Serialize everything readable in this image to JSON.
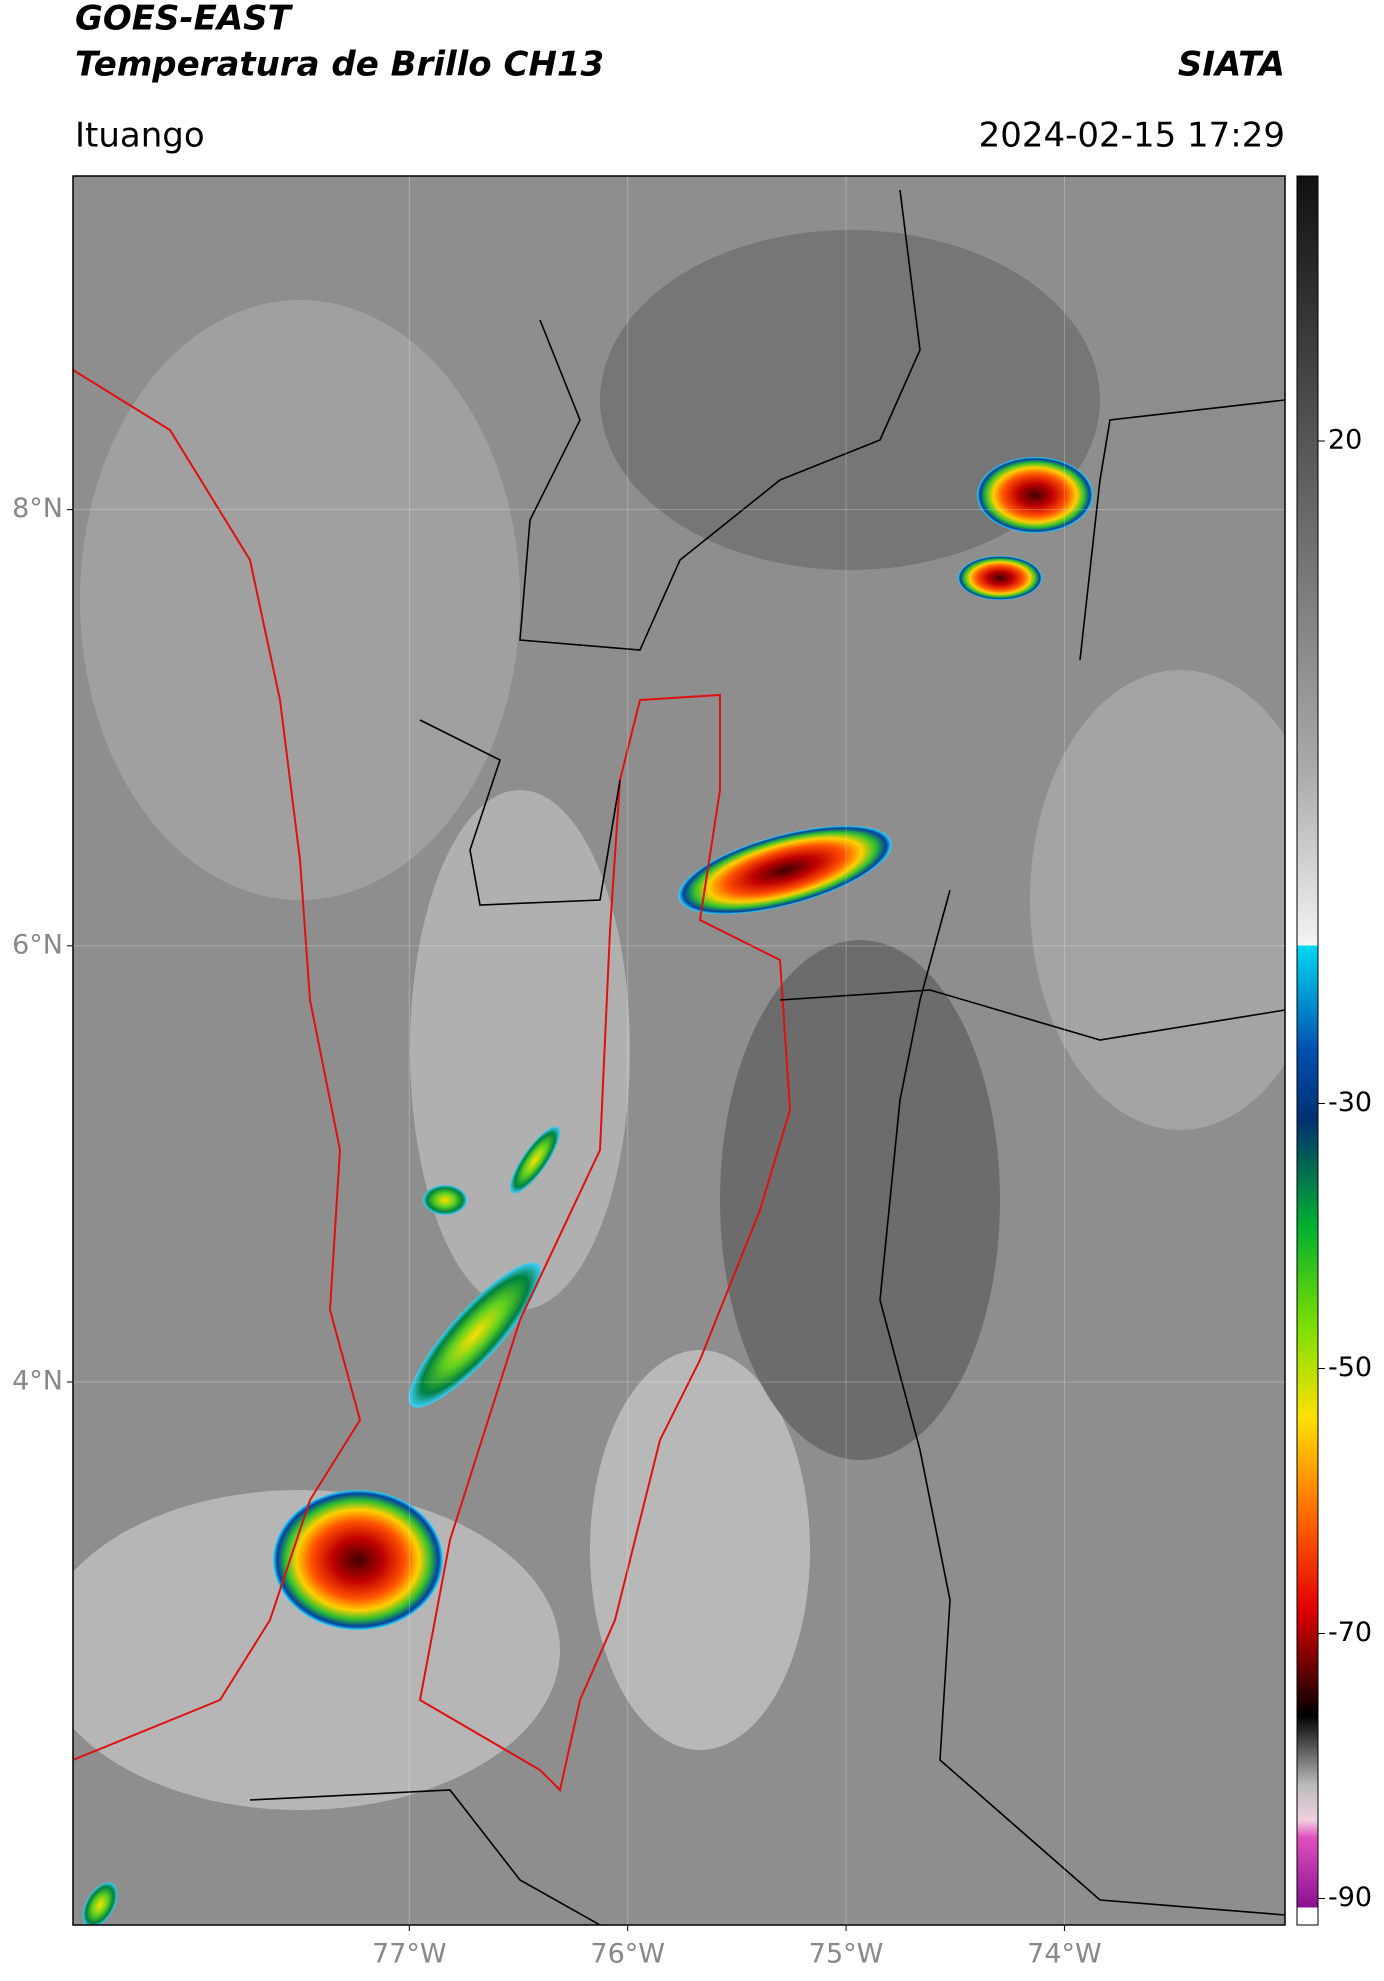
{
  "header": {
    "title_line1": "GOES-EAST",
    "title_line2": "Temperatura de Brillo CH13",
    "org": "SIATA",
    "location": "Ituango",
    "datetime": "2024-02-15 17:29"
  },
  "chart_data": {
    "type": "map",
    "xlim": [
      -78.54,
      -72.99
    ],
    "ylim": [
      1.51,
      9.53
    ],
    "xticks": [
      {
        "value": -77,
        "label": "77°W"
      },
      {
        "value": -76,
        "label": "76°W"
      },
      {
        "value": -75,
        "label": "75°W"
      },
      {
        "value": -74,
        "label": "74°W"
      }
    ],
    "yticks": [
      {
        "value": 4,
        "label": "4°N"
      },
      {
        "value": 6,
        "label": "6°N"
      },
      {
        "value": 8,
        "label": "8°N"
      }
    ],
    "grid": true,
    "colorbar": {
      "lim": [
        -92,
        40
      ],
      "ticks": [
        20,
        -30,
        -50,
        -70,
        -90
      ]
    }
  }
}
